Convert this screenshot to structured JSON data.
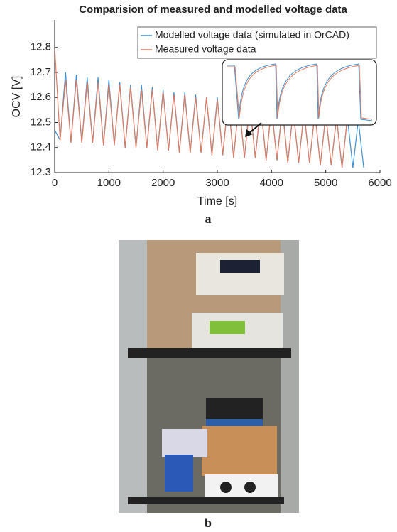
{
  "chart_data": {
    "type": "line",
    "title": "Comparision of measured and modelled voltage data",
    "x_label": "Time [s]",
    "y_label": "OCV [V]",
    "xlim": [
      0,
      6000
    ],
    "ylim": [
      12.3,
      12.91
    ],
    "xticks": [
      0,
      1000,
      2000,
      3000,
      4000,
      5000,
      6000
    ],
    "yticks": [
      12.3,
      12.4,
      12.5,
      12.6,
      12.7,
      12.8
    ],
    "legend": "upper right",
    "grid": false,
    "series": [
      {
        "name": "Modelled voltage data (simulated in OrCAD)",
        "color": "#3d8fd1",
        "x": [
          0,
          100,
          200,
          300,
          400,
          500,
          600,
          700,
          800,
          900,
          1000,
          1100,
          1200,
          1300,
          1400,
          1500,
          1600,
          1700,
          1800,
          1900,
          2000,
          2100,
          2200,
          2300,
          2400,
          2500,
          2600,
          2700,
          2800,
          2900,
          3000,
          3100,
          3200,
          3300,
          3400,
          3500,
          3600,
          3700,
          3800,
          3900,
          4000,
          4100,
          4200,
          4300,
          4400,
          4500,
          4600,
          4700,
          4800,
          4900,
          5000,
          5100,
          5200,
          5300,
          5400,
          5500,
          5600,
          5700
        ],
        "values": [
          12.47,
          12.43,
          12.7,
          12.42,
          12.69,
          12.42,
          12.68,
          12.42,
          12.68,
          12.41,
          12.67,
          12.41,
          12.66,
          12.4,
          12.65,
          12.4,
          12.65,
          12.4,
          12.64,
          12.39,
          12.63,
          12.39,
          12.62,
          12.38,
          12.62,
          12.38,
          12.61,
          12.38,
          12.6,
          12.37,
          12.6,
          12.37,
          12.59,
          12.36,
          12.58,
          12.36,
          12.58,
          12.36,
          12.57,
          12.35,
          12.56,
          12.35,
          12.56,
          12.34,
          12.55,
          12.34,
          12.54,
          12.34,
          12.54,
          12.33,
          12.53,
          12.33,
          12.52,
          12.32,
          12.52,
          12.32,
          12.51,
          12.32
        ]
      },
      {
        "name": "Measured voltage data",
        "color": "#e07a5f",
        "x": [
          0,
          100,
          200,
          300,
          400,
          500,
          600,
          700,
          800,
          900,
          1000,
          1100,
          1200,
          1300,
          1400,
          1500,
          1600,
          1700,
          1800,
          1900,
          2000,
          2100,
          2200,
          2300,
          2400,
          2500,
          2600,
          2700,
          2800,
          2900,
          3000,
          3100,
          3200,
          3300,
          3400,
          3500,
          3600,
          3700,
          3800,
          3900,
          4000,
          4100,
          4200,
          4300,
          4400,
          4500,
          4600,
          4700,
          4800,
          4900,
          5000,
          5100,
          5200,
          5300,
          5400
        ],
        "values": [
          12.8,
          12.43,
          12.67,
          12.42,
          12.67,
          12.42,
          12.66,
          12.42,
          12.66,
          12.41,
          12.65,
          12.41,
          12.65,
          12.4,
          12.64,
          12.4,
          12.63,
          12.4,
          12.63,
          12.39,
          12.62,
          12.39,
          12.61,
          12.38,
          12.61,
          12.38,
          12.6,
          12.38,
          12.6,
          12.37,
          12.59,
          12.37,
          12.59,
          12.36,
          12.58,
          12.36,
          12.57,
          12.36,
          12.57,
          12.35,
          12.56,
          12.35,
          12.55,
          12.34,
          12.55,
          12.34,
          12.54,
          12.34,
          12.54,
          12.33,
          12.53,
          12.33,
          12.52,
          12.32,
          12.52
        ]
      }
    ]
  },
  "figure": {
    "panel_a_label": "a",
    "panel_b_label": "b"
  }
}
